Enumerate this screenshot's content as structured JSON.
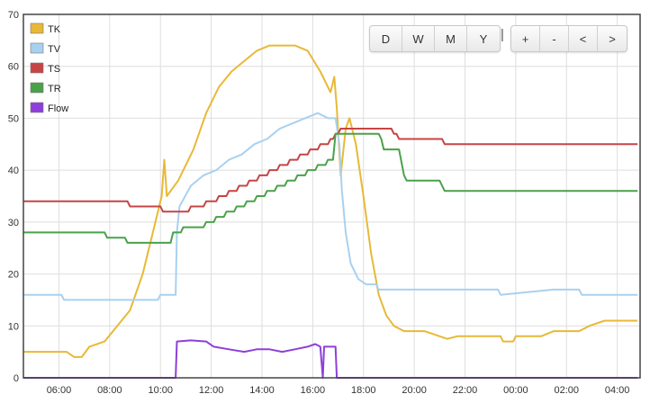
{
  "toolbar": {
    "range_buttons": [
      "D",
      "W",
      "M",
      "Y"
    ],
    "separator": "|",
    "nav_buttons": [
      "+",
      "-",
      "<",
      ">"
    ]
  },
  "chart_data": {
    "type": "line",
    "title": "",
    "xlabel": "",
    "ylabel": "",
    "x_unit": "hours",
    "xlim": [
      4.6,
      28.9
    ],
    "ylim": [
      0,
      70
    ],
    "y_ticks": [
      0,
      10,
      20,
      30,
      40,
      50,
      60,
      70
    ],
    "x_ticks": [
      {
        "value": 6,
        "label": "06:00"
      },
      {
        "value": 8,
        "label": "08:00"
      },
      {
        "value": 10,
        "label": "10:00"
      },
      {
        "value": 12,
        "label": "12:00"
      },
      {
        "value": 14,
        "label": "14:00"
      },
      {
        "value": 16,
        "label": "16:00"
      },
      {
        "value": 18,
        "label": "18:00"
      },
      {
        "value": 20,
        "label": "20:00"
      },
      {
        "value": 22,
        "label": "22:00"
      },
      {
        "value": 24,
        "label": "00:00"
      },
      {
        "value": 26,
        "label": "02:00"
      },
      {
        "value": 28,
        "label": "04:00"
      }
    ],
    "grid": true,
    "legend_position": "top-left",
    "series": [
      {
        "name": "TK",
        "color": "#e8b937",
        "points": [
          [
            4.6,
            5
          ],
          [
            6.3,
            5
          ],
          [
            6.6,
            4
          ],
          [
            6.9,
            4
          ],
          [
            7.2,
            6
          ],
          [
            7.8,
            7
          ],
          [
            8.3,
            10
          ],
          [
            8.8,
            13
          ],
          [
            9.3,
            20
          ],
          [
            9.7,
            28
          ],
          [
            10.05,
            35
          ],
          [
            10.15,
            42
          ],
          [
            10.25,
            35
          ],
          [
            10.7,
            38
          ],
          [
            11.3,
            44
          ],
          [
            11.8,
            51
          ],
          [
            12.3,
            56
          ],
          [
            12.8,
            59
          ],
          [
            13.3,
            61
          ],
          [
            13.8,
            63
          ],
          [
            14.3,
            64
          ],
          [
            14.8,
            64
          ],
          [
            15.3,
            64
          ],
          [
            15.8,
            63
          ],
          [
            16.3,
            59
          ],
          [
            16.7,
            55
          ],
          [
            16.85,
            58
          ],
          [
            16.95,
            52
          ],
          [
            17.1,
            39
          ],
          [
            17.3,
            48
          ],
          [
            17.45,
            50
          ],
          [
            17.7,
            45
          ],
          [
            18.0,
            35
          ],
          [
            18.3,
            24
          ],
          [
            18.6,
            16
          ],
          [
            18.9,
            12
          ],
          [
            19.2,
            10
          ],
          [
            19.6,
            9
          ],
          [
            20.4,
            9
          ],
          [
            21.0,
            8
          ],
          [
            21.3,
            7.5
          ],
          [
            21.7,
            8
          ],
          [
            23.4,
            8
          ],
          [
            23.5,
            7
          ],
          [
            23.9,
            7
          ],
          [
            24.0,
            8
          ],
          [
            25.0,
            8
          ],
          [
            25.5,
            9
          ],
          [
            26.5,
            9
          ],
          [
            26.9,
            10
          ],
          [
            27.5,
            11
          ],
          [
            28.8,
            11
          ]
        ]
      },
      {
        "name": "TV",
        "color": "#a9d1ef",
        "points": [
          [
            4.6,
            16
          ],
          [
            6.1,
            16
          ],
          [
            6.2,
            15
          ],
          [
            9.9,
            15
          ],
          [
            10.0,
            16
          ],
          [
            10.6,
            16
          ],
          [
            10.65,
            28
          ],
          [
            10.75,
            33
          ],
          [
            11.2,
            37
          ],
          [
            11.7,
            39
          ],
          [
            12.2,
            40
          ],
          [
            12.7,
            42
          ],
          [
            13.2,
            43
          ],
          [
            13.7,
            45
          ],
          [
            14.2,
            46
          ],
          [
            14.7,
            48
          ],
          [
            15.2,
            49
          ],
          [
            15.7,
            50
          ],
          [
            16.2,
            51
          ],
          [
            16.6,
            50
          ],
          [
            16.9,
            50
          ],
          [
            17.05,
            45
          ],
          [
            17.15,
            36
          ],
          [
            17.3,
            28
          ],
          [
            17.5,
            22
          ],
          [
            17.8,
            19
          ],
          [
            18.1,
            18
          ],
          [
            18.5,
            18
          ],
          [
            18.6,
            17
          ],
          [
            23.3,
            17
          ],
          [
            23.4,
            16
          ],
          [
            25.5,
            17
          ],
          [
            26.5,
            17
          ],
          [
            26.6,
            16
          ],
          [
            28.8,
            16
          ]
        ]
      },
      {
        "name": "TS",
        "color": "#c74444",
        "points": [
          [
            4.6,
            34
          ],
          [
            8.7,
            34
          ],
          [
            8.8,
            33
          ],
          [
            10.0,
            33
          ],
          [
            10.1,
            32
          ],
          [
            11.1,
            32
          ],
          [
            11.2,
            33
          ],
          [
            11.7,
            33
          ],
          [
            11.8,
            34
          ],
          [
            12.2,
            34
          ],
          [
            12.3,
            35
          ],
          [
            12.6,
            35
          ],
          [
            12.7,
            36
          ],
          [
            13.0,
            36
          ],
          [
            13.1,
            37
          ],
          [
            13.4,
            37
          ],
          [
            13.5,
            38
          ],
          [
            13.8,
            38
          ],
          [
            13.9,
            39
          ],
          [
            14.2,
            39
          ],
          [
            14.3,
            40
          ],
          [
            14.6,
            40
          ],
          [
            14.7,
            41
          ],
          [
            15.0,
            41
          ],
          [
            15.1,
            42
          ],
          [
            15.4,
            42
          ],
          [
            15.5,
            43
          ],
          [
            15.8,
            43
          ],
          [
            15.9,
            44
          ],
          [
            16.2,
            44
          ],
          [
            16.3,
            45
          ],
          [
            16.6,
            45
          ],
          [
            16.7,
            46
          ],
          [
            16.8,
            46
          ],
          [
            16.9,
            47
          ],
          [
            17.0,
            47
          ],
          [
            17.1,
            48
          ],
          [
            19.1,
            48
          ],
          [
            19.2,
            47
          ],
          [
            19.3,
            47
          ],
          [
            19.4,
            46
          ],
          [
            21.1,
            46
          ],
          [
            21.2,
            45
          ],
          [
            28.8,
            45
          ]
        ]
      },
      {
        "name": "TR",
        "color": "#4aa14a",
        "points": [
          [
            4.6,
            28
          ],
          [
            7.8,
            28
          ],
          [
            7.9,
            27
          ],
          [
            8.6,
            27
          ],
          [
            8.7,
            26
          ],
          [
            10.4,
            26
          ],
          [
            10.5,
            28
          ],
          [
            10.8,
            28
          ],
          [
            10.9,
            29
          ],
          [
            11.7,
            29
          ],
          [
            11.8,
            30
          ],
          [
            12.1,
            30
          ],
          [
            12.2,
            31
          ],
          [
            12.5,
            31
          ],
          [
            12.6,
            32
          ],
          [
            12.9,
            32
          ],
          [
            13.0,
            33
          ],
          [
            13.3,
            33
          ],
          [
            13.4,
            34
          ],
          [
            13.7,
            34
          ],
          [
            13.8,
            35
          ],
          [
            14.1,
            35
          ],
          [
            14.2,
            36
          ],
          [
            14.5,
            36
          ],
          [
            14.6,
            37
          ],
          [
            14.9,
            37
          ],
          [
            15.0,
            38
          ],
          [
            15.3,
            38
          ],
          [
            15.4,
            39
          ],
          [
            15.7,
            39
          ],
          [
            15.8,
            40
          ],
          [
            16.1,
            40
          ],
          [
            16.2,
            41
          ],
          [
            16.5,
            41
          ],
          [
            16.6,
            42
          ],
          [
            16.8,
            42
          ],
          [
            16.9,
            47
          ],
          [
            18.6,
            47
          ],
          [
            18.7,
            46
          ],
          [
            18.8,
            44
          ],
          [
            19.4,
            44
          ],
          [
            19.6,
            39
          ],
          [
            19.7,
            38
          ],
          [
            21.0,
            38
          ],
          [
            21.1,
            37
          ],
          [
            21.2,
            36
          ],
          [
            28.8,
            36
          ]
        ]
      },
      {
        "name": "Flow",
        "color": "#8e3fd9",
        "points": [
          [
            4.6,
            0
          ],
          [
            10.6,
            0
          ],
          [
            10.65,
            7
          ],
          [
            11.2,
            7.2
          ],
          [
            11.8,
            7
          ],
          [
            12.1,
            6
          ],
          [
            12.7,
            5.5
          ],
          [
            13.3,
            5
          ],
          [
            13.8,
            5.5
          ],
          [
            14.3,
            5.5
          ],
          [
            14.8,
            5
          ],
          [
            15.3,
            5.5
          ],
          [
            15.8,
            6
          ],
          [
            16.1,
            6.5
          ],
          [
            16.3,
            6
          ],
          [
            16.4,
            0
          ],
          [
            16.45,
            6
          ],
          [
            16.9,
            6
          ],
          [
            16.95,
            0
          ],
          [
            28.8,
            0
          ]
        ]
      }
    ]
  }
}
